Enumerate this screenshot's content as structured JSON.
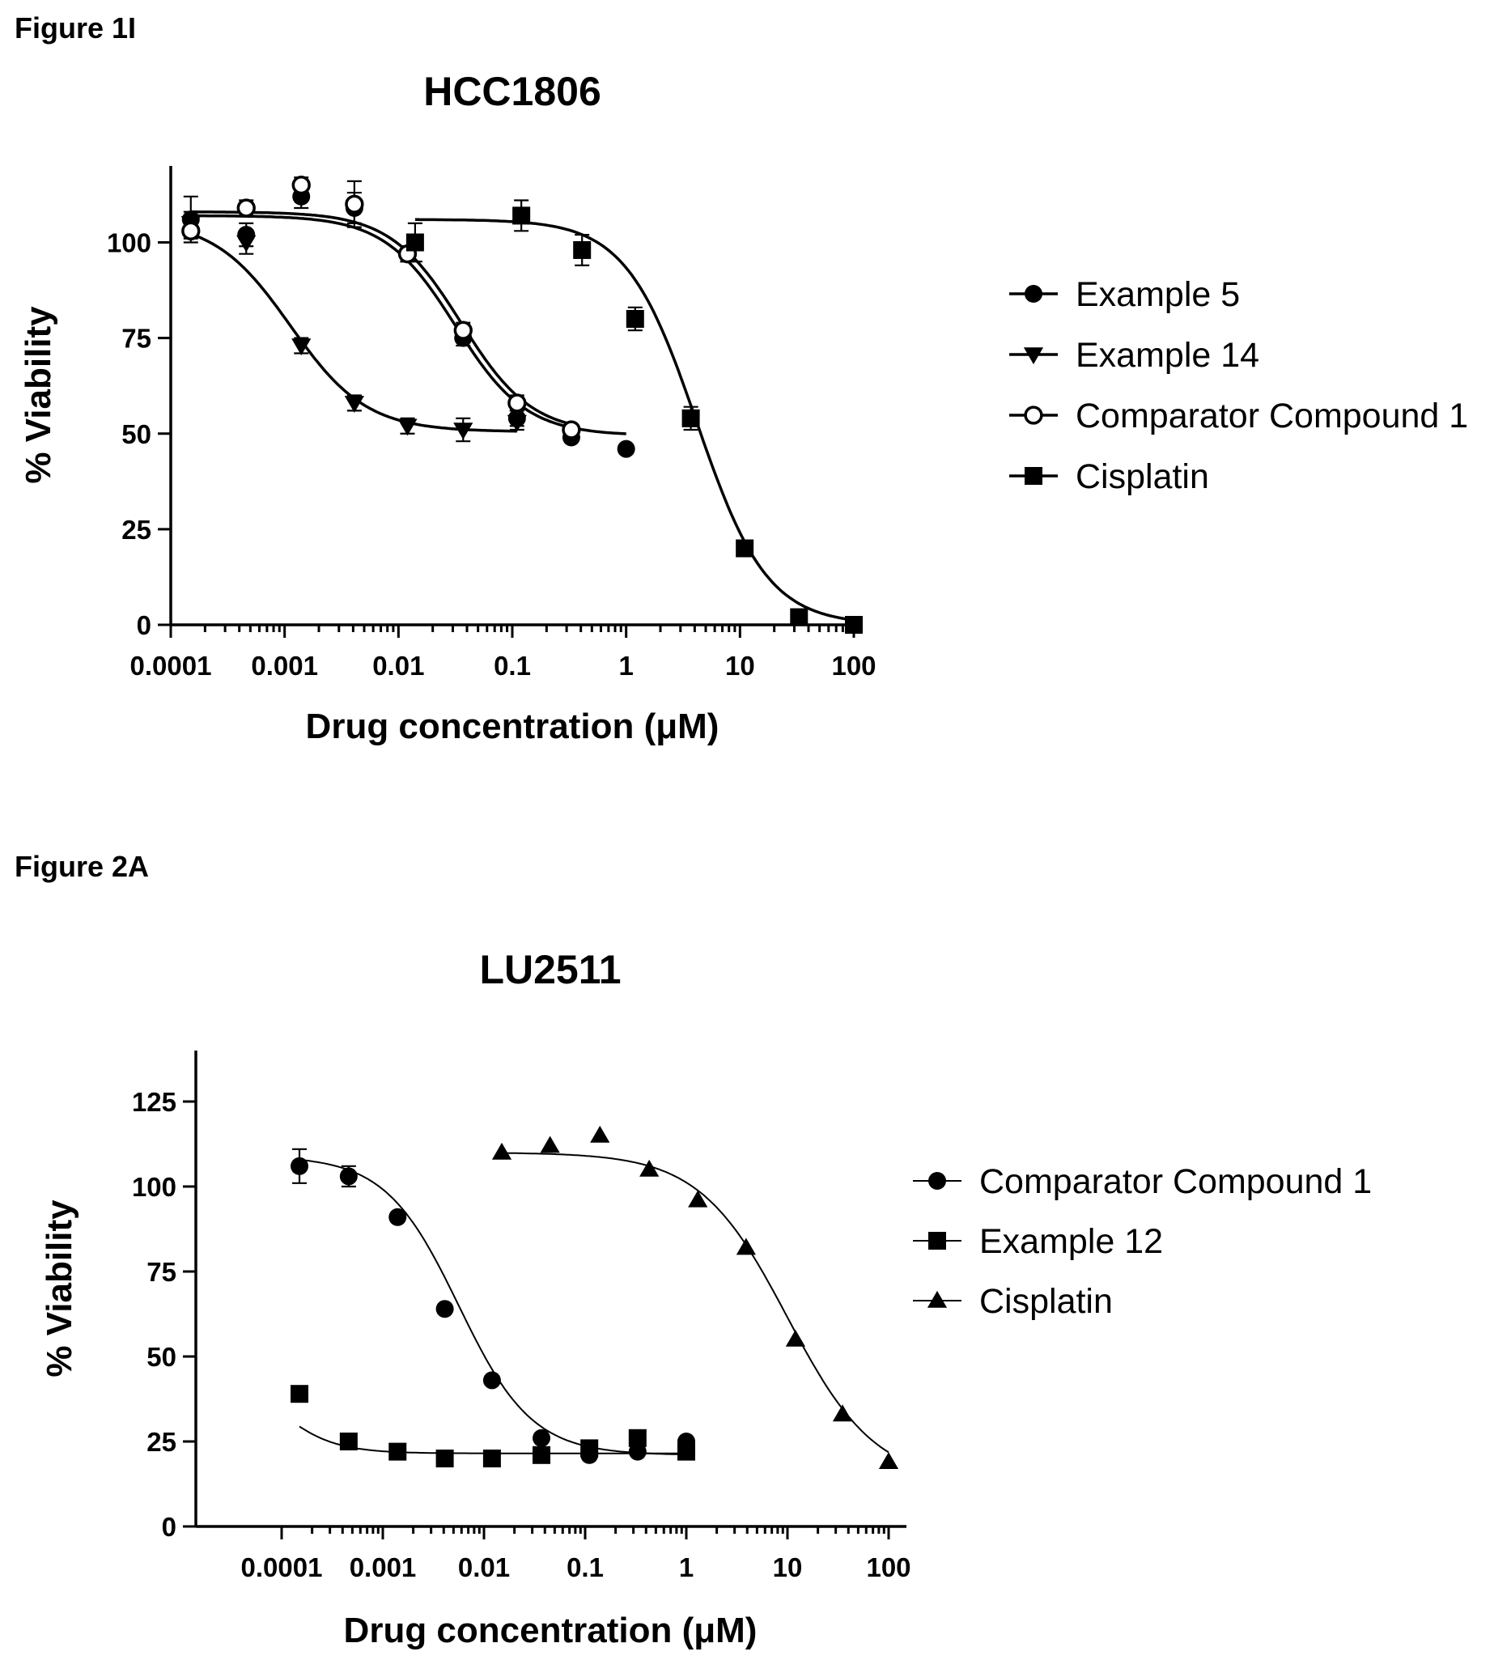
{
  "figures": [
    {
      "label": "Figure 1I"
    },
    {
      "label": "Figure 2A"
    }
  ],
  "chart_data": [
    {
      "type": "scatter",
      "title": "HCC1806",
      "xlabel": "Drug concentration (μM)",
      "ylabel": "% Viability",
      "xscale": "log",
      "xlim": [
        0.0001,
        100
      ],
      "ylim": [
        0,
        120
      ],
      "xticks": [
        0.0001,
        0.001,
        0.01,
        0.1,
        1,
        10,
        100
      ],
      "xtick_labels": [
        "0.0001",
        "0.001",
        "0.01",
        "0.1",
        "1",
        "10",
        "100"
      ],
      "yticks": [
        0,
        25,
        50,
        75,
        100
      ],
      "ytick_labels": [
        "0",
        "25",
        "50",
        "75",
        "100"
      ],
      "legend_position": "right",
      "series": [
        {
          "name": "Example 5",
          "marker": "circle-filled",
          "x": [
            0.00015,
            0.00046,
            0.0014,
            0.0041,
            0.012,
            0.037,
            0.11,
            0.33,
            1.0
          ],
          "y": [
            106,
            102,
            112,
            109,
            97,
            75,
            54,
            49,
            46
          ],
          "err": [
            6,
            3,
            3,
            4,
            2,
            2,
            2,
            1,
            1
          ],
          "fit": {
            "top": 107,
            "bottom": 49.5,
            "logec50": -1.5,
            "hill": 1.4
          }
        },
        {
          "name": "Example 14",
          "marker": "triangle-down",
          "x": [
            0.00015,
            0.00046,
            0.0014,
            0.0041,
            0.012,
            0.037,
            0.11
          ],
          "y": [
            105,
            100,
            73,
            58,
            52,
            51,
            53
          ],
          "err": [
            3,
            3,
            2,
            2,
            2,
            3,
            2
          ],
          "fit": {
            "top": 106,
            "bottom": 50.5,
            "logec50": -2.95,
            "hill": 1.3
          }
        },
        {
          "name": "Comparator Compound 1",
          "marker": "circle-open",
          "x": [
            0.00015,
            0.00046,
            0.0014,
            0.0041,
            0.012,
            0.037,
            0.11,
            0.33
          ],
          "y": [
            103,
            109,
            115,
            110,
            97,
            77,
            58,
            51
          ],
          "err": [
            2,
            2,
            2,
            6,
            2,
            2,
            2,
            1
          ],
          "fit": {
            "top": 108,
            "bottom": 50,
            "logec50": -1.45,
            "hill": 1.4
          }
        },
        {
          "name": "Cisplatin",
          "marker": "square",
          "x": [
            0.014,
            0.12,
            0.41,
            1.2,
            3.7,
            11,
            33,
            100
          ],
          "y": [
            100,
            107,
            98,
            80,
            54,
            20,
            2,
            0
          ],
          "err": [
            5,
            4,
            4,
            3,
            3,
            1,
            1,
            1
          ],
          "fit": {
            "top": 106,
            "bottom": 0,
            "logec50": 0.62,
            "hill": 1.4
          }
        }
      ]
    },
    {
      "type": "scatter",
      "title": "LU2511",
      "xlabel": "Drug concentration (μM)",
      "ylabel": "% Viability",
      "xscale": "log",
      "xlim": [
        0.0001,
        100
      ],
      "ylim": [
        0,
        140
      ],
      "xticks": [
        0.0001,
        0.001,
        0.01,
        0.1,
        1,
        10,
        100
      ],
      "xtick_labels": [
        "0.0001",
        "0.001",
        "0.01",
        "0.1",
        "1",
        "10",
        "100"
      ],
      "yticks": [
        0,
        25,
        50,
        75,
        100,
        125
      ],
      "ytick_labels": [
        "0",
        "25",
        "50",
        "75",
        "100",
        "125"
      ],
      "legend_position": "right",
      "series": [
        {
          "name": "Comparator Compound 1",
          "marker": "circle-filled",
          "x": [
            0.00015,
            0.00046,
            0.0014,
            0.0041,
            0.012,
            0.037,
            0.11,
            0.33,
            1.0
          ],
          "y": [
            106,
            103,
            91,
            64,
            43,
            26,
            21,
            22,
            25
          ],
          "err": [
            5,
            3,
            0,
            0,
            0,
            0,
            0,
            0,
            0
          ],
          "fit": {
            "top": 109,
            "bottom": 21,
            "logec50": -2.25,
            "hill": 1.2
          }
        },
        {
          "name": "Example 12",
          "marker": "square",
          "x": [
            0.00015,
            0.00046,
            0.0014,
            0.0041,
            0.012,
            0.037,
            0.11,
            0.33,
            1.0
          ],
          "y": [
            39,
            25,
            22,
            20,
            20,
            21,
            23,
            26,
            22
          ],
          "err": [
            0,
            0,
            0,
            0,
            0,
            0,
            0,
            0,
            0
          ],
          "fit": {
            "top": 50,
            "bottom": 21.5,
            "logec50": -4.1,
            "hill": 1.5
          }
        },
        {
          "name": "Cisplatin",
          "marker": "triangle-up",
          "x": [
            0.14,
            0.43,
            1.3,
            3.9,
            12,
            35,
            100,
            0.045,
            0.015
          ],
          "y": [
            115,
            105,
            96,
            82,
            55,
            33,
            19,
            112,
            110
          ],
          "err": [
            0,
            0,
            0,
            0,
            0,
            0,
            0,
            0,
            0
          ],
          "fit": {
            "top": 110,
            "bottom": 13,
            "logec50": 1.0,
            "hill": 1.0
          }
        }
      ]
    }
  ]
}
